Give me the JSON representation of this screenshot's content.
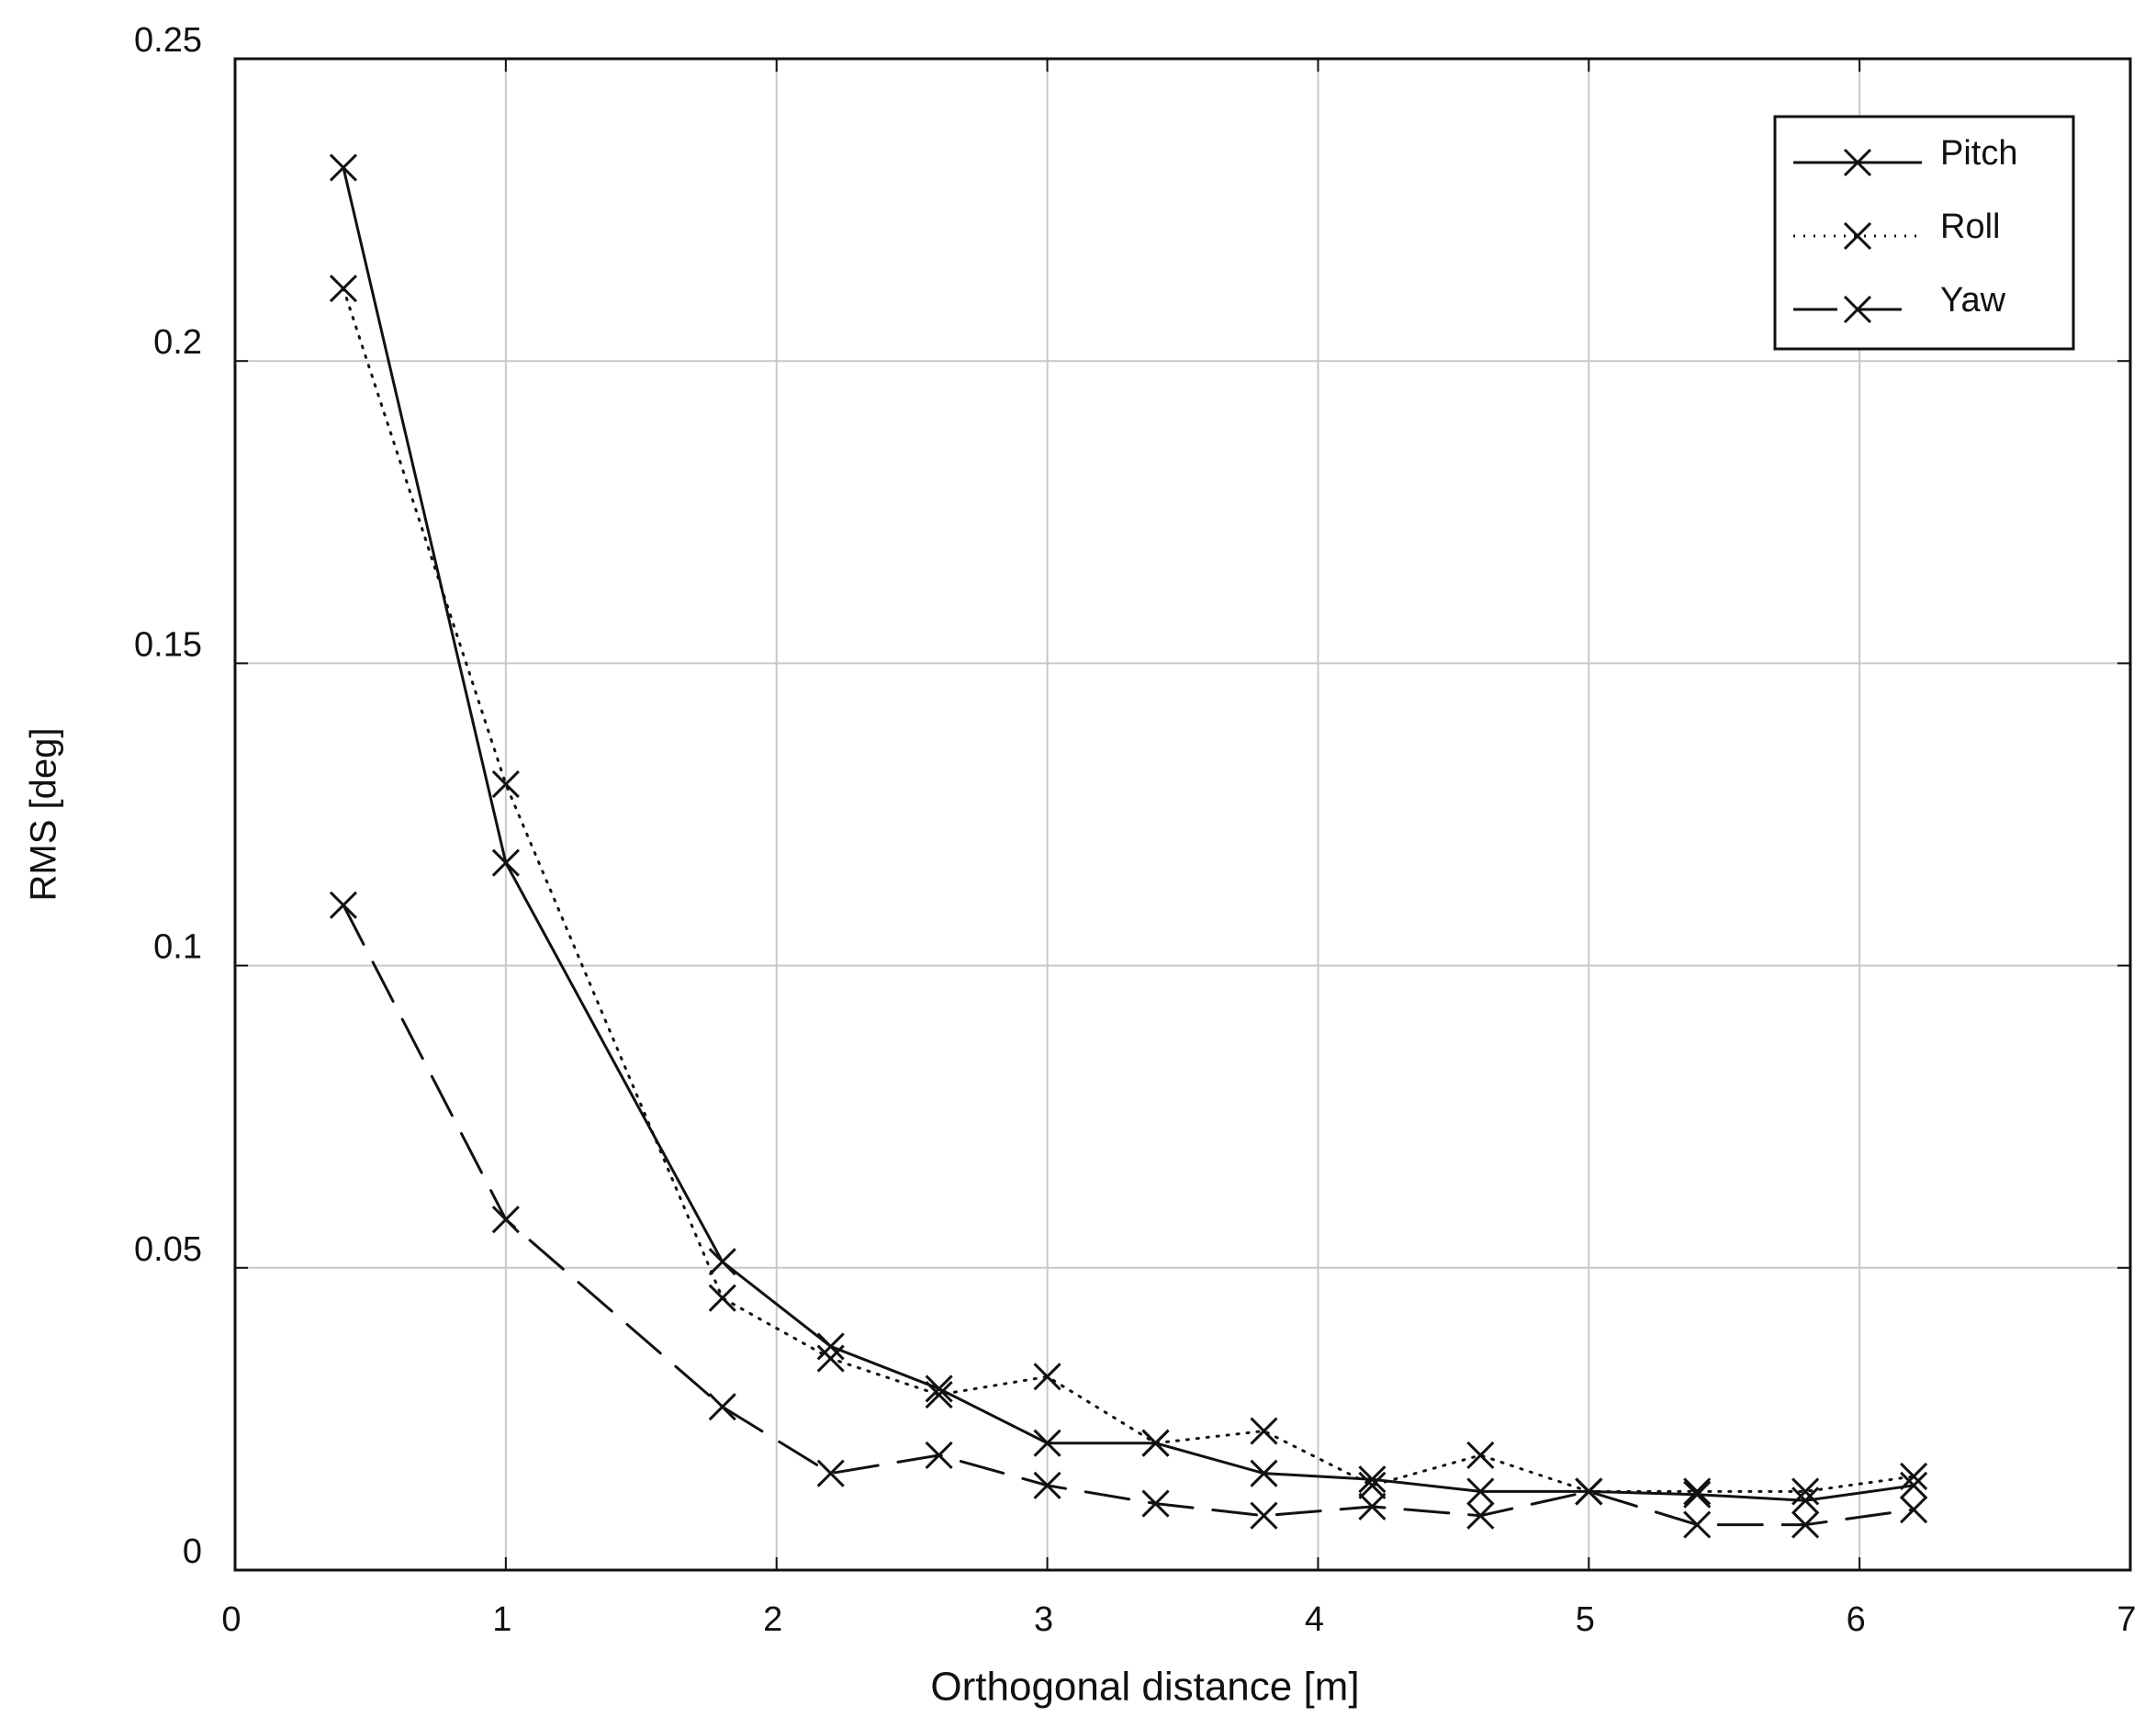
{
  "chart_data": {
    "type": "line",
    "xlabel": "Orthogonal distance [m]",
    "ylabel": "RMS [deg]",
    "x": [
      0.4,
      1,
      1.8,
      2.2,
      2.6,
      3,
      3.4,
      3.8,
      4.2,
      4.6,
      5,
      5.4,
      5.8,
      6.2
    ],
    "series": [
      {
        "name": "Pitch",
        "color": "#111111",
        "line_style": "solid",
        "marker": "x",
        "values": [
          0.232,
          0.117,
          0.051,
          0.037,
          0.03,
          0.021,
          0.021,
          0.016,
          0.015,
          0.013,
          0.013,
          0.0125,
          0.0115,
          0.014
        ]
      },
      {
        "name": "Roll",
        "color": "#111111",
        "line_style": "dotted",
        "marker": "x",
        "values": [
          0.212,
          0.13,
          0.045,
          0.035,
          0.029,
          0.032,
          0.021,
          0.023,
          0.014,
          0.019,
          0.013,
          0.013,
          0.013,
          0.0155
        ]
      },
      {
        "name": "Yaw",
        "color": "#111111",
        "line_style": "dashed",
        "marker": "x",
        "values": [
          0.11,
          0.058,
          0.027,
          0.016,
          0.019,
          0.014,
          0.011,
          0.009,
          0.0105,
          0.009,
          0.013,
          0.0075,
          0.0075,
          0.01
        ]
      }
    ],
    "xlim": [
      0,
      7
    ],
    "xticks": [
      0,
      1,
      2,
      3,
      4,
      5,
      6,
      7
    ],
    "ylim": [
      0,
      0.25
    ],
    "yticks": [
      0,
      0.05,
      0.1,
      0.15,
      0.2,
      0.25
    ],
    "grid": true,
    "legend": "upper right"
  }
}
